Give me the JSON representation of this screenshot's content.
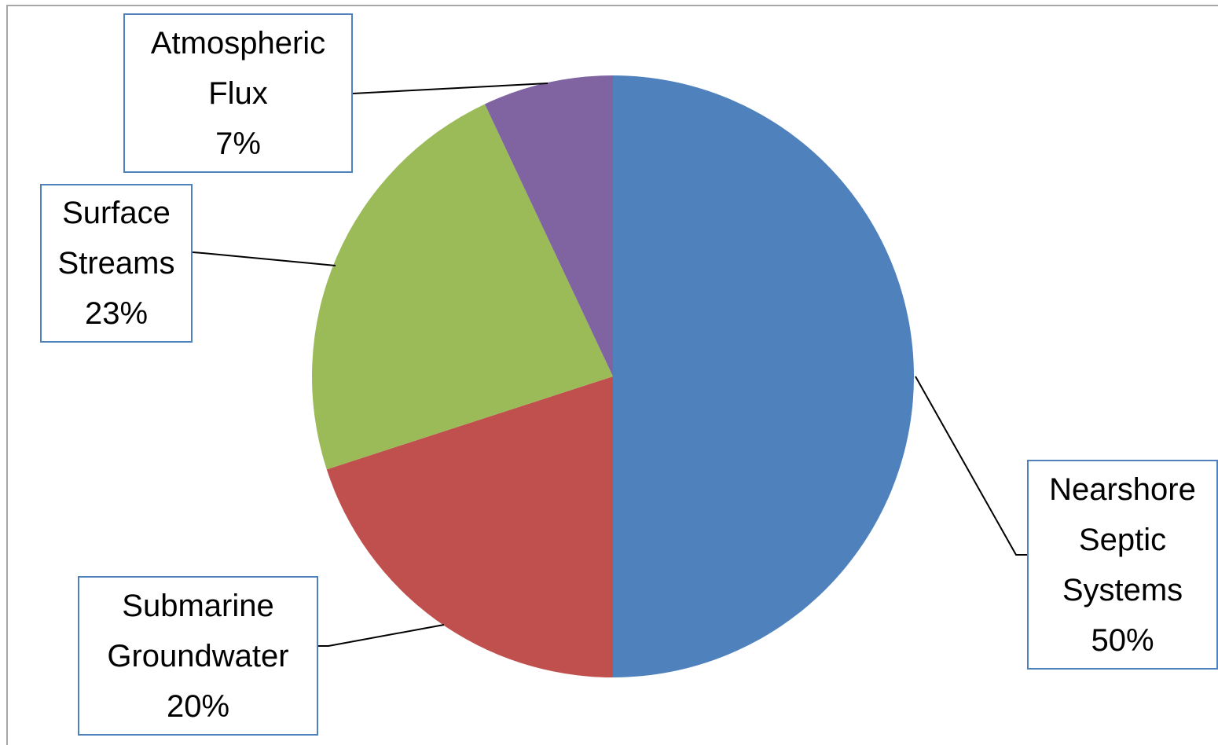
{
  "chart_data": {
    "type": "pie",
    "categories": [
      "Nearshore Septic Systems",
      "Submarine Groundwater",
      "Surface Streams",
      "Atmospheric Flux"
    ],
    "values": [
      50,
      20,
      23,
      7
    ],
    "value_labels": [
      "50%",
      "20%",
      "23%",
      "7%"
    ],
    "colors": [
      "#4f81bd",
      "#c0504d",
      "#9bbb59",
      "#8064a2"
    ]
  }
}
